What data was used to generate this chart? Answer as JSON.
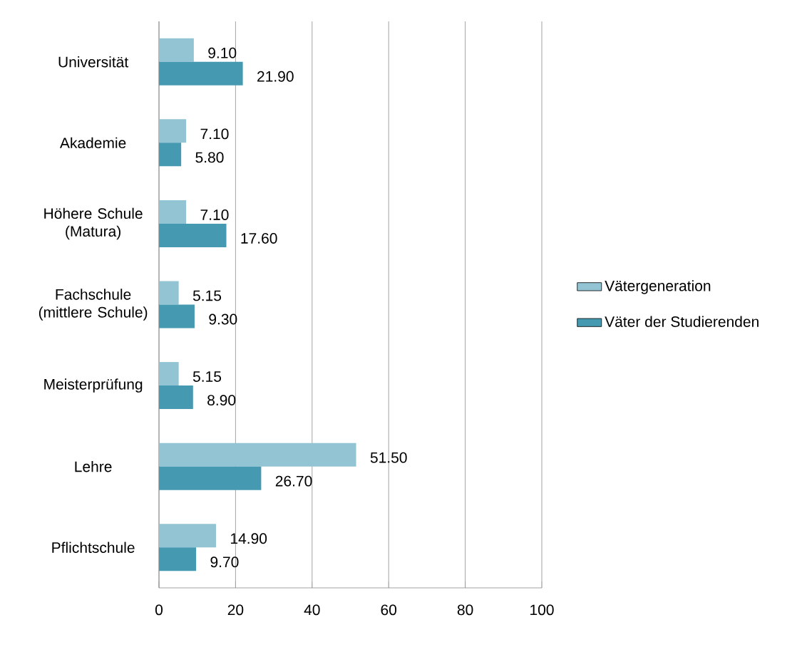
{
  "chart_data": {
    "type": "bar",
    "orientation": "horizontal",
    "categories": [
      "Universität",
      "Akademie",
      "Höhere Schule (Matura)",
      "Fachschule (mittlere Schule)",
      "Meisterprüfung",
      "Lehre",
      "Pflichtschule"
    ],
    "series": [
      {
        "name": "Vätergeneration",
        "color": "#93c4d4",
        "values": [
          9.1,
          7.1,
          7.1,
          5.15,
          5.15,
          51.5,
          14.9
        ],
        "value_labels": [
          "9.10",
          "7.10",
          "7.10",
          "5.15",
          "5.15",
          "51.50",
          "14.90"
        ]
      },
      {
        "name": "Väter der Studierenden",
        "color": "#4599b0",
        "values": [
          21.9,
          5.8,
          17.6,
          9.3,
          8.9,
          26.7,
          9.7
        ],
        "value_labels": [
          "21.90",
          "5.80",
          "17.60",
          "9.30",
          "8.90",
          "26.70",
          "9.70"
        ]
      }
    ],
    "xlim": [
      0,
      100
    ],
    "xticks": [
      0,
      20,
      40,
      60,
      80,
      100
    ],
    "grid": "x",
    "legend": "right"
  }
}
